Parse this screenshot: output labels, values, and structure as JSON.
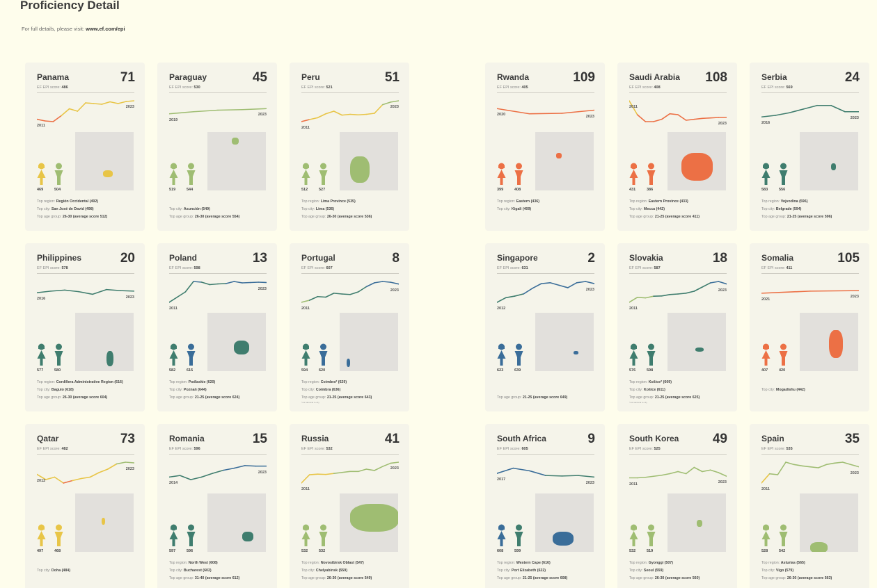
{
  "header": {
    "title": "Proficiency Detail",
    "subtitle_prefix": "For full details, please visit:",
    "subtitle_link": "www.ef.com/epi"
  },
  "score_label": "EF EPI score:",
  "labels": {
    "region": "Top region:",
    "city": "Top city:",
    "age": "Top age group:"
  },
  "band_colors": {
    "very_low": "#ec7045",
    "low": "#e8c547",
    "moderate": "#9fbd72",
    "high": "#3f7d6e",
    "very_high": "#3a6d99"
  },
  "cards": [
    {
      "name": "Panama",
      "rank": "71",
      "score": "486",
      "first_year": "2011",
      "last_year": "2023",
      "trend": [
        445,
        440,
        438,
        455,
        475,
        468,
        492,
        490,
        488,
        495,
        490,
        496,
        498
      ],
      "female": "469",
      "male": "504",
      "region": "Región Occidental (492)",
      "city": "San José de David (498)",
      "age": "26-30 (average score 512)"
    },
    {
      "name": "Paraguay",
      "rank": "45",
      "score": "530",
      "first_year": "2019",
      "last_year": "2023",
      "trend": [
        520,
        524,
        527,
        528,
        530
      ],
      "female": "519",
      "male": "544",
      "city": "Asunción (549)",
      "age": "26-30 (average score 554)"
    },
    {
      "name": "Peru",
      "rank": "51",
      "score": "521",
      "first_year": "2011",
      "last_year": "2023",
      "trend": [
        440,
        448,
        455,
        470,
        480,
        465,
        468,
        466,
        468,
        472,
        505,
        515,
        520
      ],
      "female": "512",
      "male": "527",
      "region": "Lima Province (535)",
      "city": "Lima (536)",
      "age": "26-30 (average score 536)"
    },
    {
      "name": "Rwanda",
      "rank": "109",
      "score": "405",
      "first_year": "2020",
      "last_year": "2023",
      "trend": [
        415,
        405,
        406,
        412
      ],
      "female": "399",
      "male": "408",
      "region": "Eastern (436)",
      "city": "Kigali (409)"
    },
    {
      "name": "Saudi Arabia",
      "rank": "108",
      "score": "408",
      "first_year": "2011",
      "last_year": "2023",
      "trend": [
        470,
        440,
        425,
        425,
        430,
        442,
        440,
        428,
        430,
        432,
        433,
        434,
        434
      ],
      "female": "431",
      "male": "386",
      "region": "Eastern Province (433)",
      "city": "Mecca (442)",
      "age": "21-25 (average score 411)"
    },
    {
      "name": "Serbia",
      "rank": "24",
      "score": "569",
      "first_year": "2016",
      "last_year": "2023",
      "trend": [
        560,
        563,
        568,
        575,
        582,
        582,
        570,
        570
      ],
      "female": "583",
      "male": "556",
      "region": "Vojvodina (596)",
      "city": "Belgrade (594)",
      "age": "21-25 (average score 596)"
    },
    {
      "name": "Philippines",
      "rank": "20",
      "score": "578",
      "first_year": "2016",
      "last_year": "2023",
      "trend": [
        575,
        578,
        580,
        577,
        572,
        581,
        579,
        578
      ],
      "female": "577",
      "male": "580",
      "region": "Cordillera Administrative Region (616)",
      "city": "Baguio (618)",
      "age": "26-30 (average score 604)"
    },
    {
      "name": "Poland",
      "rank": "13",
      "score": "598",
      "first_year": "2011",
      "last_year": "2023",
      "trend": [
        545,
        560,
        575,
        605,
        603,
        596,
        598,
        599,
        605,
        601,
        602,
        603,
        602
      ],
      "female": "582",
      "male": "615",
      "region": "Podlaskie (620)",
      "city": "Poznań (644)",
      "age": "21-25 (average score 624)"
    },
    {
      "name": "Portugal",
      "rank": "8",
      "score": "607",
      "first_year": "2011",
      "last_year": "2023",
      "trend": [
        540,
        548,
        562,
        560,
        575,
        572,
        570,
        580,
        600,
        615,
        620,
        617,
        610
      ],
      "female": "594",
      "male": "620",
      "region": "Coimbra* (629)",
      "city": "Coimbra (636)",
      "age": "21-25 (average score 643)",
      "footnote": "*not identical to city"
    },
    {
      "name": "Singapore",
      "rank": "2",
      "score": "631",
      "first_year": "2012",
      "last_year": "2023",
      "trend": [
        565,
        580,
        585,
        592,
        610,
        625,
        628,
        620,
        612,
        628,
        632,
        625
      ],
      "female": "623",
      "male": "639",
      "age": "21-25 (average score 649)"
    },
    {
      "name": "Slovakia",
      "rank": "18",
      "score": "587",
      "first_year": "2011",
      "last_year": "2023",
      "trend": [
        530,
        548,
        546,
        552,
        553,
        558,
        560,
        563,
        570,
        585,
        600,
        605,
        596
      ],
      "female": "576",
      "male": "598",
      "region": "Košice* (609)",
      "city": "Košice (611)",
      "age": "21-25 (average score 625)",
      "footnote": "*not identical to city"
    },
    {
      "name": "Somalia",
      "rank": "105",
      "score": "411",
      "first_year": "2021",
      "last_year": "2023",
      "trend": [
        406,
        410,
        411
      ],
      "female": "407",
      "male": "420",
      "city": "Mogadishu (442)"
    },
    {
      "name": "Qatar",
      "rank": "73",
      "score": "482",
      "first_year": "2012",
      "last_year": "2023",
      "trend": [
        470,
        455,
        462,
        445,
        452,
        458,
        462,
        475,
        485,
        500,
        505,
        503
      ],
      "female": "497",
      "male": "468",
      "city": "Doha (484)"
    },
    {
      "name": "Romania",
      "rank": "15",
      "score": "596",
      "first_year": "2014",
      "last_year": "2023",
      "trend": [
        585,
        588,
        580,
        585,
        592,
        598,
        602,
        607,
        606,
        606
      ],
      "female": "597",
      "male": "596",
      "region": "North West (608)",
      "city": "Bucharest (602)",
      "age": "31-40 (average score 612)"
    },
    {
      "name": "Russia",
      "rank": "41",
      "score": "532",
      "first_year": "2011",
      "last_year": "2023",
      "trend": [
        470,
        495,
        497,
        496,
        499,
        502,
        505,
        505,
        512,
        508,
        520,
        530,
        533
      ],
      "female": "532",
      "male": "532",
      "region": "Novosibirsk Oblast (547)",
      "city": "Chelyabinsk (559)",
      "age": "26-30 (average score 549)"
    },
    {
      "name": "South Africa",
      "rank": "9",
      "score": "605",
      "first_year": "2017",
      "last_year": "2023",
      "trend": [
        600,
        610,
        605,
        596,
        595,
        596,
        593
      ],
      "female": "608",
      "male": "599",
      "region": "Western Cape (616)",
      "city": "Port Elizabeth (622)",
      "age": "21-25 (average score 608)"
    },
    {
      "name": "South Korea",
      "rank": "49",
      "score": "525",
      "first_year": "2011",
      "last_year": "2023",
      "trend": [
        525,
        525,
        526,
        528,
        530,
        533,
        537,
        533,
        545,
        537,
        540,
        535,
        528
      ],
      "female": "532",
      "male": "519",
      "region": "Gyonggi (507)",
      "city": "Seoul (559)",
      "age": "26-30 (average score 560)"
    },
    {
      "name": "Spain",
      "rank": "35",
      "score": "535",
      "first_year": "2011",
      "last_year": "2023",
      "trend": [
        485,
        505,
        503,
        530,
        525,
        522,
        520,
        518,
        525,
        528,
        530,
        525,
        520
      ],
      "female": "528",
      "male": "542",
      "region": "Asturias (565)",
      "city": "Vigo (579)",
      "age": "26-30 (average score 563)"
    }
  ]
}
